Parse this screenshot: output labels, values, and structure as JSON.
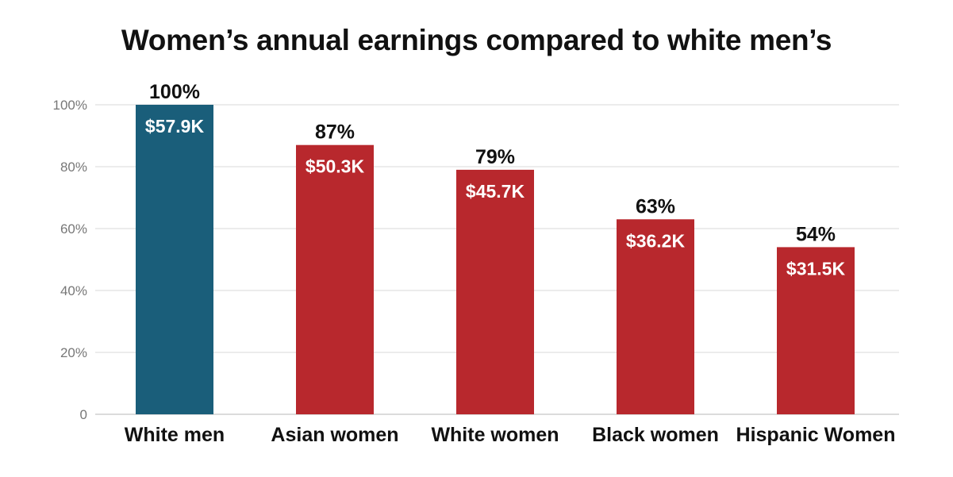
{
  "chart_data": {
    "type": "bar",
    "title": "Women’s annual earnings compared to white men’s",
    "xlabel": "",
    "ylabel": "",
    "ylim": [
      0,
      100
    ],
    "yticks": [
      0,
      20,
      40,
      60,
      80,
      100
    ],
    "ytick_labels": [
      "0",
      "20%",
      "40%",
      "60%",
      "80%",
      "100%"
    ],
    "grid": true,
    "categories": [
      "White men",
      "Asian women",
      "White women",
      "Black women",
      "Hispanic Women"
    ],
    "values": [
      100,
      87,
      79,
      63,
      54
    ],
    "percent_labels": [
      "100%",
      "87%",
      "79%",
      "63%",
      "54%"
    ],
    "earnings_labels": [
      "$57.9K",
      "$50.3K",
      "$45.7K",
      "$36.2K",
      "$31.5K"
    ],
    "colors": [
      "#1a5e7a",
      "#b8282d",
      "#b8282d",
      "#b8282d",
      "#b8282d"
    ]
  }
}
